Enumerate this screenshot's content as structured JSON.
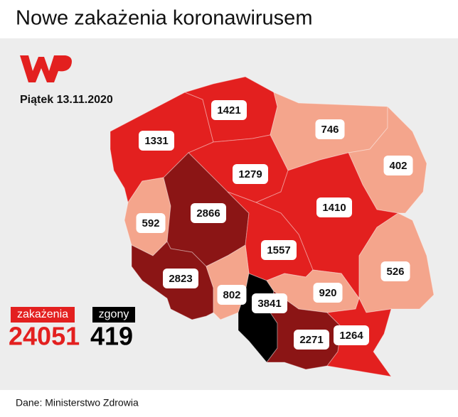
{
  "title": "Nowe zakażenia koronawirusem",
  "date": "Piątek 13.11.2020",
  "regions": [
    {
      "value": 1331,
      "color": "#e3201f"
    },
    {
      "value": 1421,
      "color": "#e3201f"
    },
    {
      "value": 746,
      "color": "#f4a58c"
    },
    {
      "value": 402,
      "color": "#f4a58c"
    },
    {
      "value": 1279,
      "color": "#e3201f"
    },
    {
      "value": 592,
      "color": "#f4a58c"
    },
    {
      "value": 2866,
      "color": "#8b1515"
    },
    {
      "value": 1410,
      "color": "#e3201f"
    },
    {
      "value": 1557,
      "color": "#e3201f"
    },
    {
      "value": 526,
      "color": "#f4a58c"
    },
    {
      "value": 2823,
      "color": "#8b1515"
    },
    {
      "value": 802,
      "color": "#f4a58c"
    },
    {
      "value": 3841,
      "color": "#000000"
    },
    {
      "value": 920,
      "color": "#f4a58c"
    },
    {
      "value": 2271,
      "color": "#8b1515"
    },
    {
      "value": 1264,
      "color": "#e3201f"
    }
  ],
  "legend": [
    {
      "label": "zakażenia",
      "total": 24051,
      "color": "#e3201f"
    },
    {
      "label": "zgony",
      "total": 419,
      "color": "#000000"
    }
  ],
  "source": "Dane: Ministerstwo Zdrowia"
}
